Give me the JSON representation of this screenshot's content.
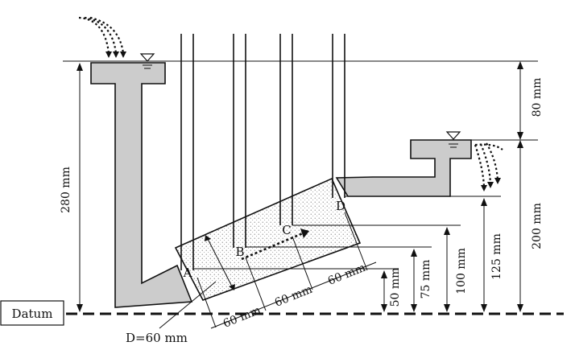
{
  "labels": {
    "datum": "Datum",
    "diameter": "D=60 mm",
    "point_a": "A",
    "point_b": "B",
    "point_c": "C",
    "point_d": "D"
  },
  "dimensions": {
    "left_height": "280 mm",
    "right_top": "80 mm",
    "right_bottom": "200 mm",
    "h_a": "50 mm",
    "h_b": "75 mm",
    "h_c": "100 mm",
    "h_d": "125 mm",
    "seg_1": "60 mm",
    "seg_2": "60 mm",
    "seg_3": "60 mm"
  },
  "colors": {
    "fluid": "#cccccc",
    "line": "#111111"
  }
}
